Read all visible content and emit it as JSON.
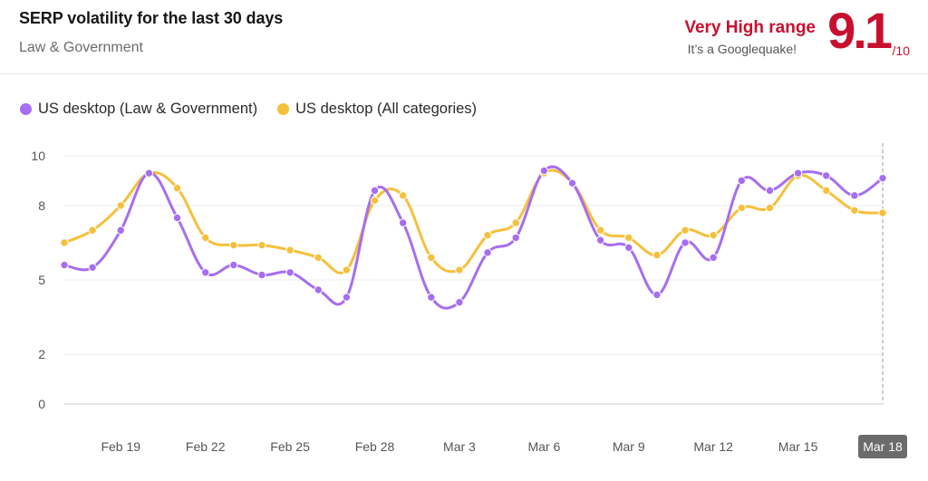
{
  "header": {
    "title": "SERP volatility for the last 30 days",
    "subtitle": "Law & Government",
    "range_label": "Very High range",
    "range_note": "It’s a Googlequake!",
    "score": "9.1",
    "score_max": "/10"
  },
  "colors": {
    "accent": "#c8102e",
    "series_law": "#a66ef0",
    "series_all": "#f5c03c"
  },
  "chart_data": {
    "type": "line",
    "title": "",
    "xlabel": "",
    "ylabel": "",
    "ylim": [
      0,
      10
    ],
    "y_ticks": [
      "0",
      "2",
      "5",
      "8",
      "10"
    ],
    "x_tick_labels": [
      "Feb 19",
      "Feb 22",
      "Feb 25",
      "Feb 28",
      "Mar 3",
      "Mar 6",
      "Mar 9",
      "Mar 12",
      "Mar 15",
      "Mar 18"
    ],
    "x_tick_indices": [
      2,
      5,
      8,
      11,
      14,
      17,
      20,
      23,
      26,
      29
    ],
    "selected_label": "Mar 18",
    "grid": true,
    "legend_position": "top-left",
    "categories": [
      "Feb 17",
      "Feb 18",
      "Feb 19",
      "Feb 20",
      "Feb 21",
      "Feb 22",
      "Feb 23",
      "Feb 24",
      "Feb 25",
      "Feb 26",
      "Feb 27",
      "Feb 28",
      "Mar 1",
      "Mar 2",
      "Mar 3",
      "Mar 4",
      "Mar 5",
      "Mar 6",
      "Mar 7",
      "Mar 8",
      "Mar 9",
      "Mar 10",
      "Mar 11",
      "Mar 12",
      "Mar 13",
      "Mar 14",
      "Mar 15",
      "Mar 16",
      "Mar 17",
      "Mar 18"
    ],
    "series": [
      {
        "name": "US desktop (Law & Government)",
        "color": "#a66ef0",
        "values": [
          5.6,
          5.5,
          7.0,
          9.3,
          7.5,
          5.3,
          5.6,
          5.2,
          5.3,
          4.6,
          4.3,
          8.6,
          7.3,
          4.3,
          4.1,
          6.1,
          6.7,
          9.4,
          8.9,
          6.6,
          6.3,
          4.4,
          6.5,
          5.9,
          9.0,
          8.6,
          9.3,
          9.2,
          8.4,
          9.1
        ]
      },
      {
        "name": "US desktop (All categories)",
        "color": "#f5c03c",
        "values": [
          6.5,
          7.0,
          8.0,
          9.3,
          8.7,
          6.7,
          6.4,
          6.4,
          6.2,
          5.9,
          5.4,
          8.2,
          8.4,
          5.9,
          5.4,
          6.8,
          7.3,
          9.3,
          8.9,
          7.0,
          6.7,
          6.0,
          7.0,
          6.8,
          7.9,
          7.9,
          9.2,
          8.6,
          7.8,
          7.7
        ]
      }
    ]
  }
}
